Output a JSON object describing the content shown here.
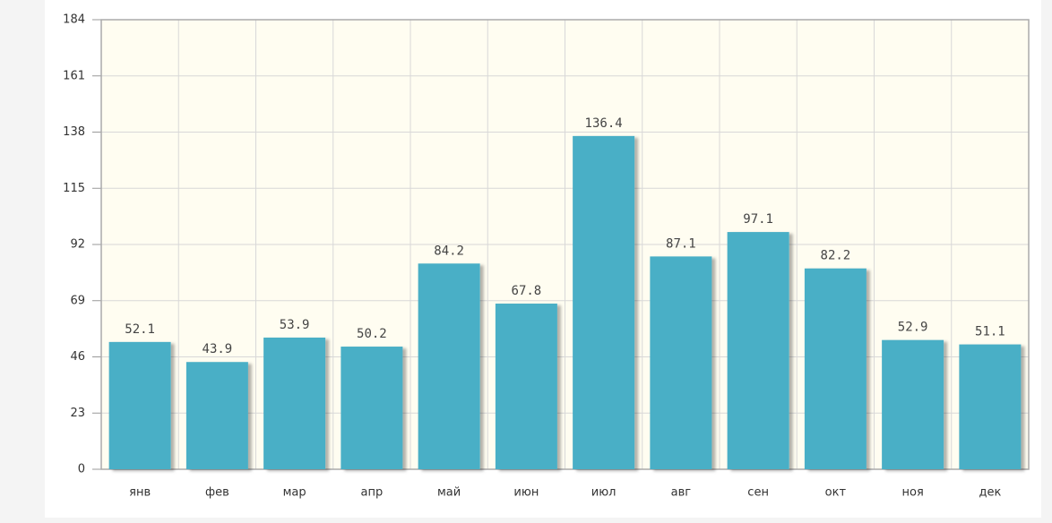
{
  "chart_data": {
    "type": "bar",
    "categories": [
      "янв",
      "фев",
      "мар",
      "апр",
      "май",
      "июн",
      "июл",
      "авг",
      "сен",
      "окт",
      "ноя",
      "дек"
    ],
    "values": [
      52.1,
      43.9,
      53.9,
      50.2,
      84.2,
      67.8,
      136.4,
      87.1,
      97.1,
      82.2,
      52.9,
      51.1
    ],
    "color": "#4aafc6",
    "ylim": [
      0,
      184
    ],
    "yticks": [
      0,
      23,
      46,
      69,
      92,
      115,
      138,
      161,
      184
    ],
    "grid": true
  }
}
